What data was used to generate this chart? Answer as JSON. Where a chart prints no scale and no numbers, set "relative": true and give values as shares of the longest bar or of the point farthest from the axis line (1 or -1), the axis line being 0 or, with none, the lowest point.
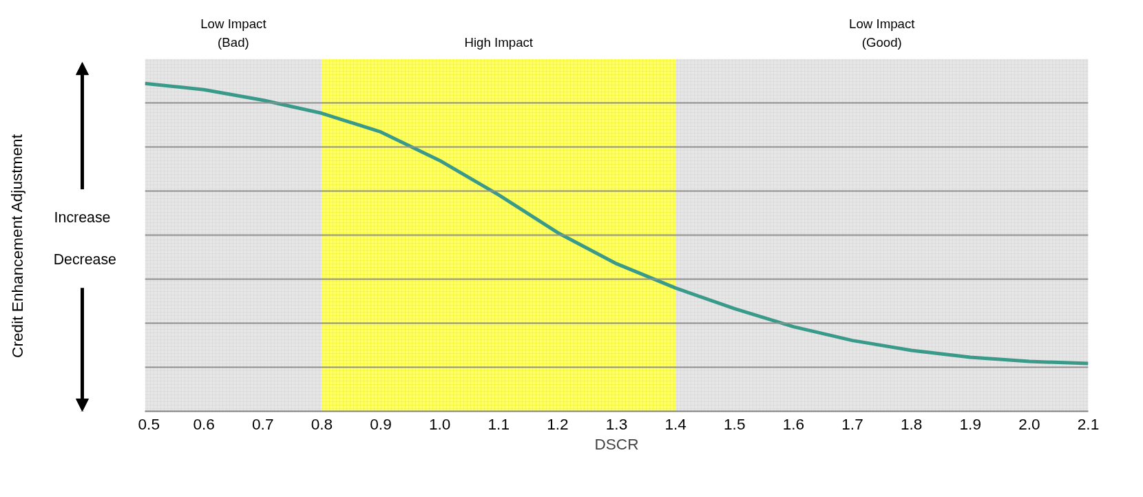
{
  "chart_data": {
    "type": "line",
    "relative": true,
    "xlabel": "DSCR",
    "annotations": [
      "Credit Enhancement Adjustment",
      "Increase",
      "Decrease"
    ],
    "x": [
      0.5,
      0.6,
      0.7,
      0.8,
      0.9,
      1.0,
      1.1,
      1.2,
      1.3,
      1.4,
      1.5,
      1.6,
      1.7,
      1.8,
      1.9,
      2.0,
      2.1
    ],
    "series": [
      {
        "color": "#3a9a8a",
        "values": [
          1.0,
          0.981,
          0.949,
          0.909,
          0.852,
          0.765,
          0.66,
          0.545,
          0.45,
          0.376,
          0.313,
          0.258,
          0.216,
          0.186,
          0.165,
          0.152,
          0.146
        ]
      }
    ],
    "xlim": [
      0.5,
      2.1
    ],
    "xticks": [
      0.5,
      0.6,
      0.7,
      0.8,
      0.9,
      {
        "value": 1.0,
        "label": "1.0"
      },
      1.1,
      1.2,
      1.3,
      1.4,
      1.5,
      1.6,
      1.7,
      1.8,
      1.9,
      {
        "value": 2.0,
        "label": "2.0"
      },
      2.1
    ],
    "bands": [
      {
        "axis": "x",
        "from": 0.5,
        "to": 0.8,
        "label": "Low Impact\n(Bad)",
        "color": "#e6e6e6"
      },
      {
        "axis": "x",
        "from": 0.8,
        "to": 1.4,
        "label": "High Impact",
        "color": "#ffff66"
      },
      {
        "axis": "x",
        "from": 1.4,
        "to": 2.1,
        "label": "Low Impact\n(Good)",
        "color": "#e6e6e6"
      }
    ],
    "grid": "y",
    "marker": "none",
    "line_style": "solid"
  }
}
